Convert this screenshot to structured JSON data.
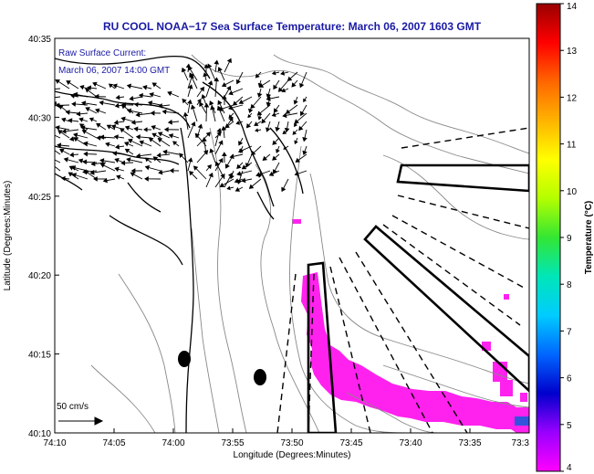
{
  "title": "RU COOL  NOAA−17  Sea Surface Temperature:  March 06, 2007 1603 GMT",
  "annotation": {
    "line1": "Raw Surface Current:",
    "line2": "March 06, 2007 14:00 GMT"
  },
  "scale_label": "50 cm/s",
  "axes": {
    "xlabel": "Longitude (Degrees:Minutes)",
    "ylabel": "Latitude (Degrees:Minutes)",
    "x_ticks": [
      "74:10",
      "74:05",
      "74:00",
      "73:55",
      "73:50",
      "73:45",
      "73:40",
      "73:35",
      "73:3"
    ],
    "y_ticks": [
      "40:35",
      "40:30",
      "40:25",
      "40:20",
      "40:15",
      "40:10"
    ]
  },
  "colorbar": {
    "label": "Temperature (°C)",
    "ticks": [
      "14",
      "13",
      "12",
      "11",
      "10",
      "9",
      "8",
      "7",
      "6",
      "5",
      "4"
    ],
    "min": 4,
    "max": 14,
    "colors": [
      "#ff00ff",
      "#9900ff",
      "#0000cc",
      "#0066ff",
      "#00ccff",
      "#00e6b8",
      "#33e633",
      "#b3ff00",
      "#ffff00",
      "#ffb300",
      "#ff6600",
      "#ff0000",
      "#990000"
    ]
  },
  "colors": {
    "title": "#1a1aa6",
    "sst_patch": "#ff22ee",
    "coast": "#000000",
    "bathymetry": "#888888"
  }
}
